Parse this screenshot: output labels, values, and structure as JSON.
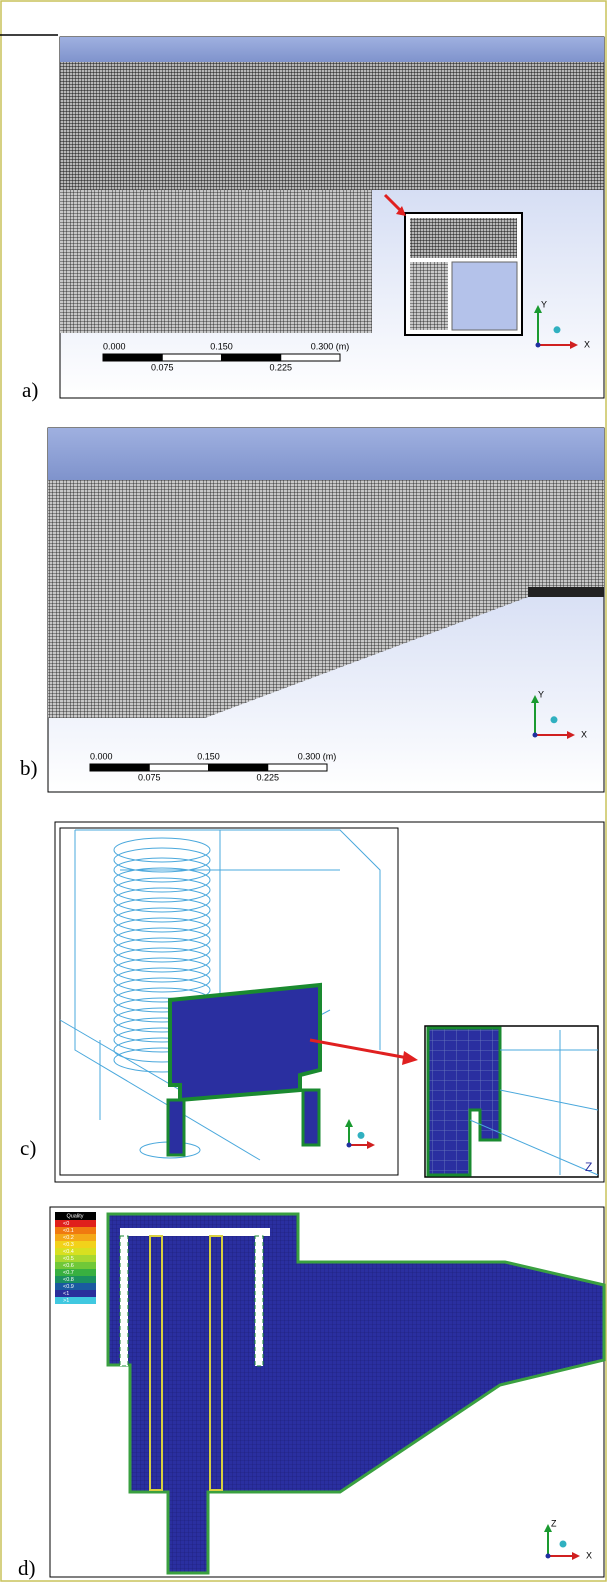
{
  "panels": [
    {
      "label": "a)",
      "scale_top": [
        "0.000",
        "0.150",
        "0.300 (m)"
      ],
      "scale_bottom": [
        "0.075",
        "0.225"
      ],
      "axes": [
        "Y",
        "X"
      ]
    },
    {
      "label": "b)",
      "scale_top": [
        "0.000",
        "0.150",
        "0.300 (m)"
      ],
      "scale_bottom": [
        "0.075",
        "0.225"
      ],
      "axes": [
        "Y",
        "X"
      ]
    },
    {
      "label": "c)",
      "axes": [
        "Z"
      ]
    },
    {
      "label": "d)",
      "axes": [
        "Z",
        "X"
      ]
    }
  ],
  "legend": {
    "title": "Quality",
    "items": [
      {
        "label": "<0",
        "color": "#e0201c"
      },
      {
        "label": "<0.1",
        "color": "#f07a10"
      },
      {
        "label": "<0.2",
        "color": "#f4a818"
      },
      {
        "label": "<0.3",
        "color": "#f2d21a"
      },
      {
        "label": "<0.4",
        "color": "#d8e020"
      },
      {
        "label": "<0.5",
        "color": "#a8d830"
      },
      {
        "label": "<0.6",
        "color": "#70c838"
      },
      {
        "label": "<0.7",
        "color": "#38b040"
      },
      {
        "label": "<0.8",
        "color": "#1a9060"
      },
      {
        "label": "<0.9",
        "color": "#1a5aa0"
      },
      {
        "label": "<1",
        "color": "#2a2f9c"
      },
      {
        "label": ">1",
        "color": "#40c8e0"
      }
    ]
  }
}
